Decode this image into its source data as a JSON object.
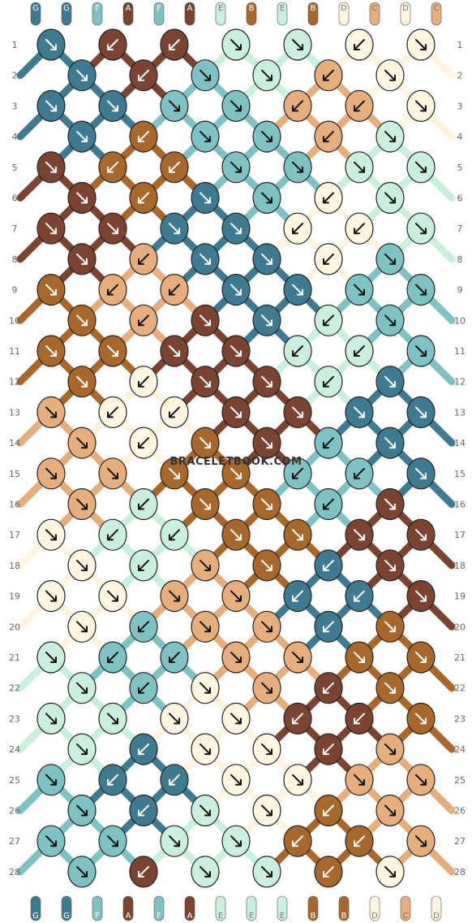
{
  "watermark": "BRACELETBOOK.COM",
  "colors": {
    "G": "#3f7a93",
    "F": "#7fc2c4",
    "A": "#7a4430",
    "E": "#c9f0de",
    "B": "#a8672b",
    "D": "#fff5e1",
    "C": "#e6ae7d"
  },
  "strands_top": [
    "G",
    "G",
    "F",
    "A",
    "F",
    "A",
    "E",
    "B",
    "E",
    "B",
    "D",
    "C",
    "D",
    "C"
  ],
  "strands_bottom": [
    "G",
    "G",
    "F",
    "A",
    "F",
    "A",
    "E",
    "E",
    "E",
    "B",
    "B",
    "D",
    "C",
    "D"
  ],
  "row_labels": [
    "1",
    "2",
    "3",
    "4",
    "5",
    "6",
    "7",
    "8",
    "9",
    "10",
    "11",
    "12",
    "13",
    "14",
    "15",
    "16",
    "17",
    "18",
    "19",
    "20",
    "21",
    "22",
    "23",
    "24",
    "25",
    "26",
    "27",
    "28"
  ],
  "knots": [
    [
      [
        "G",
        "dr"
      ],
      [
        "A",
        "dl"
      ],
      [
        "A",
        "dl"
      ],
      [
        "E",
        "dr"
      ],
      [
        "E",
        "dr"
      ],
      [
        "D",
        "dl"
      ],
      [
        "D",
        "dr"
      ]
    ],
    [
      [
        "G",
        "dr"
      ],
      [
        "A",
        "dl"
      ],
      [
        "F",
        "dr"
      ],
      [
        "E",
        "dr"
      ],
      [
        "C",
        "dl"
      ],
      [
        "D",
        "dr"
      ]
    ],
    [
      [
        "G",
        "dr"
      ],
      [
        "G",
        "dr"
      ],
      [
        "F",
        "dr"
      ],
      [
        "F",
        "dr"
      ],
      [
        "C",
        "dl"
      ],
      [
        "C",
        "dl"
      ],
      [
        "D",
        "dr"
      ]
    ],
    [
      [
        "G",
        "dr"
      ],
      [
        "B",
        "dl"
      ],
      [
        "F",
        "dr"
      ],
      [
        "F",
        "dr"
      ],
      [
        "C",
        "dl"
      ],
      [
        "E",
        "dr"
      ]
    ],
    [
      [
        "A",
        "dr"
      ],
      [
        "B",
        "dl"
      ],
      [
        "B",
        "dl"
      ],
      [
        "F",
        "dr"
      ],
      [
        "F",
        "dr"
      ],
      [
        "E",
        "dr"
      ],
      [
        "E",
        "dr"
      ]
    ],
    [
      [
        "A",
        "dr"
      ],
      [
        "B",
        "dl"
      ],
      [
        "G",
        "dr"
      ],
      [
        "F",
        "dr"
      ],
      [
        "D",
        "dl"
      ],
      [
        "E",
        "dr"
      ]
    ],
    [
      [
        "A",
        "dr"
      ],
      [
        "A",
        "dr"
      ],
      [
        "G",
        "dr"
      ],
      [
        "G",
        "dr"
      ],
      [
        "D",
        "dl"
      ],
      [
        "D",
        "dl"
      ],
      [
        "E",
        "dr"
      ]
    ],
    [
      [
        "A",
        "dr"
      ],
      [
        "C",
        "dl"
      ],
      [
        "G",
        "dr"
      ],
      [
        "G",
        "dr"
      ],
      [
        "D",
        "dl"
      ],
      [
        "F",
        "dr"
      ]
    ],
    [
      [
        "B",
        "dr"
      ],
      [
        "C",
        "dl"
      ],
      [
        "C",
        "dl"
      ],
      [
        "G",
        "dr"
      ],
      [
        "G",
        "dr"
      ],
      [
        "F",
        "dr"
      ],
      [
        "F",
        "dr"
      ]
    ],
    [
      [
        "B",
        "dr"
      ],
      [
        "C",
        "dl"
      ],
      [
        "A",
        "dr"
      ],
      [
        "G",
        "dr"
      ],
      [
        "E",
        "dl"
      ],
      [
        "F",
        "dr"
      ]
    ],
    [
      [
        "B",
        "dr"
      ],
      [
        "B",
        "dr"
      ],
      [
        "A",
        "dr"
      ],
      [
        "A",
        "dr"
      ],
      [
        "E",
        "dl"
      ],
      [
        "E",
        "dl"
      ],
      [
        "F",
        "dr"
      ]
    ],
    [
      [
        "B",
        "dr"
      ],
      [
        "D",
        "dl"
      ],
      [
        "A",
        "dr"
      ],
      [
        "A",
        "dr"
      ],
      [
        "E",
        "dl"
      ],
      [
        "G",
        "dr"
      ]
    ],
    [
      [
        "C",
        "dr"
      ],
      [
        "D",
        "dl"
      ],
      [
        "D",
        "dl"
      ],
      [
        "A",
        "dr"
      ],
      [
        "A",
        "dr"
      ],
      [
        "G",
        "dr"
      ],
      [
        "G",
        "dr"
      ]
    ],
    [
      [
        "C",
        "dr"
      ],
      [
        "D",
        "dl"
      ],
      [
        "B",
        "dr"
      ],
      [
        "A",
        "dr"
      ],
      [
        "F",
        "dl"
      ],
      [
        "G",
        "dr"
      ]
    ],
    [
      [
        "C",
        "dr"
      ],
      [
        "C",
        "dr"
      ],
      [
        "B",
        "dr"
      ],
      [
        "B",
        "dr"
      ],
      [
        "F",
        "dl"
      ],
      [
        "F",
        "dl"
      ],
      [
        "G",
        "dr"
      ]
    ],
    [
      [
        "C",
        "dr"
      ],
      [
        "E",
        "dl"
      ],
      [
        "B",
        "dr"
      ],
      [
        "B",
        "dr"
      ],
      [
        "F",
        "dl"
      ],
      [
        "A",
        "dr"
      ]
    ],
    [
      [
        "D",
        "dr"
      ],
      [
        "E",
        "dl"
      ],
      [
        "E",
        "dl"
      ],
      [
        "B",
        "dr"
      ],
      [
        "B",
        "dr"
      ],
      [
        "A",
        "dr"
      ],
      [
        "A",
        "dr"
      ]
    ],
    [
      [
        "D",
        "dr"
      ],
      [
        "E",
        "dl"
      ],
      [
        "C",
        "dr"
      ],
      [
        "B",
        "dr"
      ],
      [
        "G",
        "dl"
      ],
      [
        "A",
        "dr"
      ]
    ],
    [
      [
        "D",
        "dr"
      ],
      [
        "D",
        "dr"
      ],
      [
        "C",
        "dr"
      ],
      [
        "C",
        "dr"
      ],
      [
        "G",
        "dl"
      ],
      [
        "G",
        "dl"
      ],
      [
        "A",
        "dr"
      ]
    ],
    [
      [
        "D",
        "dr"
      ],
      [
        "F",
        "dl"
      ],
      [
        "C",
        "dr"
      ],
      [
        "C",
        "dr"
      ],
      [
        "G",
        "dl"
      ],
      [
        "B",
        "dr"
      ]
    ],
    [
      [
        "E",
        "dr"
      ],
      [
        "F",
        "dl"
      ],
      [
        "F",
        "dl"
      ],
      [
        "C",
        "dr"
      ],
      [
        "C",
        "dr"
      ],
      [
        "B",
        "dr"
      ],
      [
        "B",
        "dr"
      ]
    ],
    [
      [
        "E",
        "dr"
      ],
      [
        "F",
        "dl"
      ],
      [
        "D",
        "dr"
      ],
      [
        "C",
        "dr"
      ],
      [
        "A",
        "dl"
      ],
      [
        "B",
        "dr"
      ]
    ],
    [
      [
        "E",
        "dr"
      ],
      [
        "E",
        "dr"
      ],
      [
        "D",
        "dr"
      ],
      [
        "D",
        "dr"
      ],
      [
        "A",
        "dl"
      ],
      [
        "A",
        "dl"
      ],
      [
        "B",
        "dr"
      ]
    ],
    [
      [
        "E",
        "dr"
      ],
      [
        "G",
        "dl"
      ],
      [
        "D",
        "dr"
      ],
      [
        "D",
        "dr"
      ],
      [
        "A",
        "dl"
      ],
      [
        "C",
        "dr"
      ]
    ],
    [
      [
        "F",
        "dr"
      ],
      [
        "G",
        "dl"
      ],
      [
        "G",
        "dl"
      ],
      [
        "D",
        "dr"
      ],
      [
        "D",
        "dr"
      ],
      [
        "C",
        "dr"
      ],
      [
        "C",
        "dr"
      ]
    ],
    [
      [
        "F",
        "dr"
      ],
      [
        "G",
        "dl"
      ],
      [
        "E",
        "dr"
      ],
      [
        "D",
        "dr"
      ],
      [
        "B",
        "dl"
      ],
      [
        "C",
        "dr"
      ]
    ],
    [
      [
        "F",
        "dr"
      ],
      [
        "F",
        "dr"
      ],
      [
        "E",
        "dr"
      ],
      [
        "E",
        "dr"
      ],
      [
        "B",
        "dl"
      ],
      [
        "B",
        "dl"
      ],
      [
        "C",
        "dr"
      ]
    ],
    [
      [
        "F",
        "dr"
      ],
      [
        "A",
        "dl"
      ],
      [
        "E",
        "dr"
      ],
      [
        "E",
        "dr"
      ],
      [
        "B",
        "dl"
      ],
      [
        "D",
        "dr"
      ]
    ]
  ]
}
